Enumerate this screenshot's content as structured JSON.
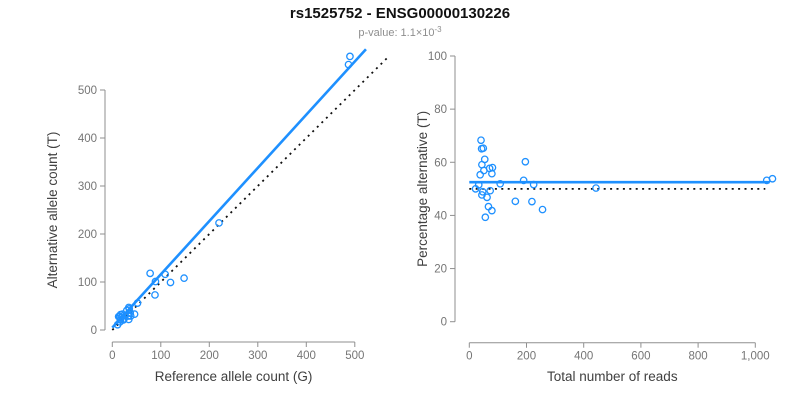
{
  "header": {
    "title": "rs1525752 - ENSG00000130226",
    "subtitle": {
      "prefix": "p-value:",
      "mantissa": "1.1×10",
      "exponent": "-3"
    }
  },
  "colors": {
    "accent_blue": "#1E90FF",
    "identity_black": "#111111",
    "axis_gray": "#8f8f8f",
    "tick_label_gray": "#757575",
    "axis_title_gray": "#404040",
    "title_color": "#111111",
    "subtitle_gray": "#8e8e8e",
    "background": "#ffffff"
  },
  "chart_data": [
    {
      "type": "scatter",
      "name": "allele-counts",
      "xlabel": "Reference allele count (G)",
      "ylabel": "Alternative allele count (T)",
      "xlim": [
        0,
        500
      ],
      "ylim": [
        0,
        500
      ],
      "xticks": [
        0,
        100,
        200,
        300,
        400,
        500
      ],
      "xtick_labels": [
        "0",
        "100",
        "200",
        "300",
        "400",
        "500"
      ],
      "yticks": [
        0,
        100,
        200,
        300,
        400,
        500
      ],
      "ytick_labels": [
        "0",
        "100",
        "200",
        "300",
        "400",
        "500"
      ],
      "grid": false,
      "legend": false,
      "marker": "open-circle",
      "points": [
        [
          13,
          28
        ],
        [
          15,
          28
        ],
        [
          17,
          32
        ],
        [
          21,
          33
        ],
        [
          18,
          26
        ],
        [
          22,
          29
        ],
        [
          30,
          41
        ],
        [
          34,
          47
        ],
        [
          35,
          44
        ],
        [
          17,
          21
        ],
        [
          11,
          11
        ],
        [
          16,
          17
        ],
        [
          24,
          23
        ],
        [
          37,
          36
        ],
        [
          52,
          56
        ],
        [
          23,
          21
        ],
        [
          33,
          29
        ],
        [
          38,
          29
        ],
        [
          46,
          33
        ],
        [
          34,
          22
        ],
        [
          78,
          118
        ],
        [
          89,
          101
        ],
        [
          88,
          73
        ],
        [
          120,
          99
        ],
        [
          109,
          116
        ],
        [
          148,
          108
        ],
        [
          220,
          223
        ],
        [
          487,
          553
        ],
        [
          490,
          570
        ]
      ],
      "lines": [
        {
          "name": "fit-line",
          "style": "solid",
          "x": [
            0,
            523
          ],
          "y": [
            5,
            585
          ]
        },
        {
          "name": "identity-line",
          "style": "dotted",
          "x": [
            0,
            570
          ],
          "y": [
            0,
            570
          ]
        }
      ]
    },
    {
      "type": "scatter",
      "name": "percentage-vs-reads",
      "xlabel": "Total number of reads",
      "ylabel": "Percentage alternative (T)",
      "xlim": [
        0,
        1000
      ],
      "ylim": [
        0,
        100
      ],
      "xticks": [
        0,
        200,
        400,
        600,
        800,
        1000
      ],
      "xtick_labels": [
        "0",
        "200",
        "400",
        "600",
        "800",
        "1,000"
      ],
      "yticks": [
        0,
        20,
        40,
        60,
        80,
        100
      ],
      "ytick_labels": [
        "0",
        "20",
        "40",
        "60",
        "80",
        "100"
      ],
      "grid": false,
      "legend": false,
      "marker": "open-circle",
      "points": [
        [
          41,
          68.3
        ],
        [
          43,
          65.1
        ],
        [
          49,
          65.3
        ],
        [
          54,
          61.1
        ],
        [
          44,
          59.1
        ],
        [
          51,
          56.9
        ],
        [
          71,
          57.7
        ],
        [
          81,
          58.0
        ],
        [
          79,
          55.7
        ],
        [
          38,
          55.3
        ],
        [
          22,
          50.0
        ],
        [
          33,
          51.5
        ],
        [
          47,
          48.9
        ],
        [
          73,
          49.3
        ],
        [
          108,
          51.9
        ],
        [
          44,
          47.7
        ],
        [
          62,
          46.8
        ],
        [
          67,
          43.3
        ],
        [
          79,
          41.8
        ],
        [
          56,
          39.3
        ],
        [
          196,
          60.2
        ],
        [
          190,
          53.2
        ],
        [
          161,
          45.3
        ],
        [
          219,
          45.2
        ],
        [
          225,
          51.6
        ],
        [
          256,
          42.2
        ],
        [
          443,
          50.3
        ],
        [
          1040,
          53.2
        ],
        [
          1060,
          53.8
        ]
      ],
      "lines": [
        {
          "name": "mean-percentage-line",
          "style": "solid",
          "x": [
            0,
            1050
          ],
          "y": [
            52.5,
            52.5
          ]
        },
        {
          "name": "null-50-percent-line",
          "style": "dotted",
          "x": [
            0,
            1035
          ],
          "y": [
            50,
            50
          ]
        }
      ]
    }
  ]
}
